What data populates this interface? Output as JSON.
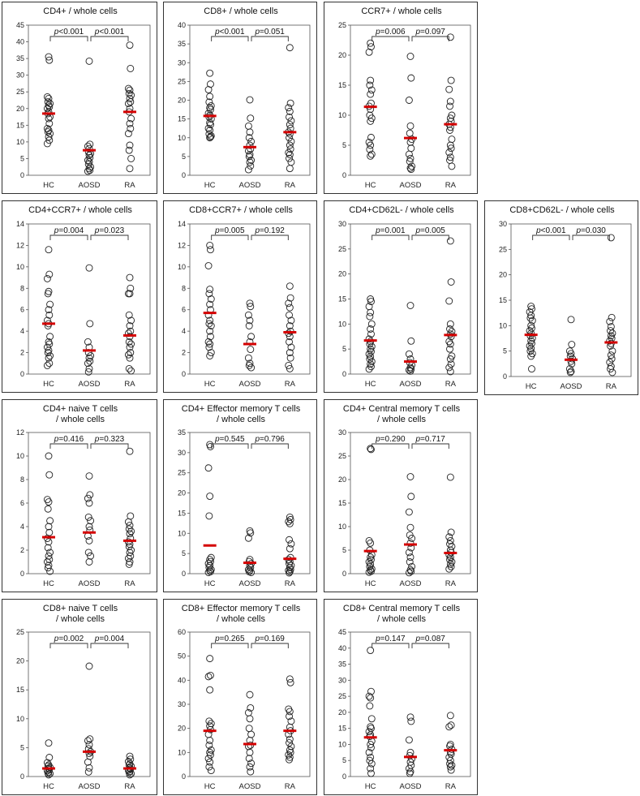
{
  "chart_data": [
    {
      "type": "scatter",
      "title": [
        "CD4+ / whole cells"
      ],
      "categories": [
        "HC",
        "AOSD",
        "RA"
      ],
      "ylim": [
        0,
        45
      ],
      "yticks": [
        0,
        5,
        10,
        15,
        20,
        25,
        30,
        35,
        40,
        45
      ],
      "pvalues": [
        "0.001",
        "0.001"
      ],
      "pvalue_ops": [
        "<",
        "<"
      ],
      "means": [
        18.5,
        7.5,
        19
      ],
      "series": [
        {
          "values": [
            35.5,
            34.5,
            23.5,
            23,
            22,
            21.5,
            21,
            20.5,
            20,
            19,
            18.5,
            17.5,
            17,
            15.5,
            14,
            13.5,
            13,
            12.5,
            11.5,
            10.5,
            9.5
          ]
        },
        {
          "values": [
            34.2,
            9.3,
            8.7,
            8,
            7,
            6.5,
            6,
            5.3,
            4.5,
            4,
            3.3,
            2.5,
            2,
            1.5,
            1.2
          ]
        },
        {
          "values": [
            39,
            32,
            26,
            25.5,
            24.5,
            24,
            23,
            22,
            21.5,
            20,
            19,
            17,
            15.5,
            14,
            12.5,
            9,
            7.5,
            5,
            2
          ]
        }
      ]
    },
    {
      "type": "scatter",
      "title": [
        "CD8+ / whole cells"
      ],
      "categories": [
        "HC",
        "AOSD",
        "RA"
      ],
      "ylim": [
        0,
        40
      ],
      "yticks": [
        0,
        5,
        10,
        15,
        20,
        25,
        30,
        35,
        40
      ],
      "pvalues": [
        "0.001",
        "0.051"
      ],
      "pvalue_ops": [
        "<",
        "="
      ],
      "means": [
        15.8,
        7.5,
        11.5
      ],
      "series": [
        {
          "values": [
            27.2,
            24.3,
            22.8,
            21,
            19.5,
            18.5,
            18,
            17.5,
            16.5,
            16,
            15.5,
            15,
            14,
            13.5,
            12.5,
            12,
            11,
            10.5,
            10,
            10.2
          ]
        },
        {
          "values": [
            20.1,
            15.2,
            13.1,
            11.5,
            10,
            9,
            8,
            7,
            6.5,
            5.5,
            5,
            4,
            3.5,
            2.5,
            1.5
          ]
        },
        {
          "values": [
            34,
            19.2,
            18,
            17,
            15.5,
            14.5,
            13.5,
            12.5,
            11.5,
            11,
            10,
            9,
            8,
            7,
            6,
            5.5,
            4.5,
            3.5,
            1.8
          ]
        }
      ]
    },
    {
      "type": "scatter",
      "title": [
        "CCR7+ / whole cells"
      ],
      "categories": [
        "HC",
        "AOSD",
        "RA"
      ],
      "ylim": [
        0,
        25
      ],
      "yticks": [
        0,
        5,
        10,
        15,
        20,
        25
      ],
      "pvalues": [
        "0.006",
        "0.097"
      ],
      "pvalue_ops": [
        "=",
        "="
      ],
      "means": [
        11.4,
        6.2,
        8.5
      ],
      "series": [
        {
          "values": [
            22,
            21.4,
            20.5,
            15.8,
            15,
            14.2,
            13.5,
            12,
            11.5,
            11,
            10,
            9.5,
            9,
            6.3,
            5.5,
            5,
            4.3,
            3.5,
            3.2
          ]
        },
        {
          "values": [
            19.8,
            16.2,
            12.5,
            8.2,
            7,
            6,
            5.5,
            4.5,
            3.5,
            2.8,
            2.3,
            1.5,
            1.2,
            1
          ]
        },
        {
          "values": [
            23,
            15.8,
            14.3,
            12.3,
            11.5,
            10,
            9.5,
            9,
            8.5,
            8,
            7.5,
            6,
            5,
            4.5,
            3.8,
            3,
            2.5,
            1.5
          ]
        }
      ]
    },
    {
      "type": "scatter",
      "title": [
        "CD4+CCR7+ / whole cells"
      ],
      "categories": [
        "HC",
        "AOSD",
        "RA"
      ],
      "ylim": [
        0,
        14
      ],
      "yticks": [
        0,
        2,
        4,
        6,
        8,
        10,
        12,
        14
      ],
      "pvalues": [
        "0.004",
        "0.023"
      ],
      "pvalue_ops": [
        "=",
        "="
      ],
      "means": [
        4.7,
        2.2,
        3.6
      ],
      "series": [
        {
          "values": [
            11.6,
            9.3,
            8.9,
            7.7,
            7.5,
            6.5,
            6,
            5.5,
            5,
            4.7,
            4.5,
            3.5,
            3,
            2.8,
            2.5,
            2.2,
            2,
            1.7,
            1.5,
            1,
            0.8
          ]
        },
        {
          "values": [
            9.9,
            4.7,
            3,
            2.5,
            2,
            1.7,
            1.5,
            1.2,
            1,
            0.5,
            0.2
          ]
        },
        {
          "values": [
            9,
            8,
            7.5,
            7.5,
            5.5,
            5,
            4.5,
            4,
            3.8,
            3.5,
            3,
            2.8,
            2.5,
            2,
            1.8,
            1.5,
            0.5,
            0.3
          ]
        }
      ]
    },
    {
      "type": "scatter",
      "title": [
        "CD8+CCR7+ / whole cells"
      ],
      "categories": [
        "HC",
        "AOSD",
        "RA"
      ],
      "ylim": [
        0,
        14
      ],
      "yticks": [
        0,
        2,
        4,
        6,
        8,
        10,
        12,
        14
      ],
      "pvalues": [
        "0.005",
        "0.192"
      ],
      "pvalue_ops": [
        "=",
        "="
      ],
      "means": [
        5.7,
        2.8,
        3.9
      ],
      "series": [
        {
          "values": [
            12,
            11.6,
            10.1,
            7.9,
            7.5,
            7,
            6.5,
            6,
            5.5,
            5,
            4.7,
            4.5,
            4,
            3.5,
            3,
            2.8,
            2.5,
            2,
            1.7
          ]
        },
        {
          "values": [
            6.6,
            6.3,
            5.5,
            5,
            4.5,
            3.5,
            3,
            2.3,
            1.5,
            1,
            0.8,
            0.6
          ]
        },
        {
          "values": [
            8.2,
            7.1,
            6.6,
            6.2,
            5.5,
            5,
            4.5,
            4,
            3.8,
            3.5,
            3,
            2.5,
            2,
            1.5,
            0.8,
            0.5
          ]
        }
      ]
    },
    {
      "type": "scatter",
      "title": [
        "CD4+CD62L- / whole cells"
      ],
      "categories": [
        "HC",
        "AOSD",
        "RA"
      ],
      "ylim": [
        0,
        30
      ],
      "yticks": [
        0,
        5,
        10,
        15,
        20,
        25,
        30
      ],
      "pvalues": [
        "0.001",
        "0.005"
      ],
      "pvalue_ops": [
        "=",
        "="
      ],
      "means": [
        6.7,
        2.5,
        7.8
      ],
      "series": [
        {
          "values": [
            15,
            14.5,
            13.5,
            12.3,
            11.5,
            10,
            9,
            8,
            7,
            6.5,
            6,
            5.5,
            5,
            4.5,
            4,
            3.5,
            3,
            2.5,
            2,
            1.5,
            1
          ]
        },
        {
          "values": [
            13.7,
            6.6,
            4,
            3,
            2.3,
            1.8,
            1.3,
            1,
            0.8,
            0.6
          ]
        },
        {
          "values": [
            26.6,
            18.4,
            14.6,
            10,
            9,
            8.5,
            8,
            7.5,
            6.5,
            6,
            5,
            3.6,
            3,
            2,
            1.3,
            0.5
          ]
        }
      ]
    },
    {
      "type": "scatter",
      "title": [
        "CD8+CD62L- / whole cells"
      ],
      "categories": [
        "HC",
        "AOSD",
        "RA"
      ],
      "ylim": [
        0,
        30
      ],
      "yticks": [
        0,
        5,
        10,
        15,
        20,
        25,
        30
      ],
      "pvalues": [
        "0.001",
        "0.030"
      ],
      "pvalue_ops": [
        "<",
        "="
      ],
      "means": [
        8.2,
        3.3,
        6.7
      ],
      "series": [
        {
          "values": [
            13.8,
            13.3,
            12.7,
            12,
            11.5,
            11,
            10,
            9.5,
            9,
            8.5,
            8,
            7.5,
            7,
            6.5,
            6,
            5.5,
            5,
            4.5,
            4,
            1.5
          ]
        },
        {
          "values": [
            11.2,
            6.3,
            5,
            4.5,
            4,
            3.5,
            3,
            2.5,
            1.5,
            1,
            0.8
          ]
        },
        {
          "values": [
            27.3,
            11.6,
            10.8,
            9.8,
            9,
            8.5,
            8,
            7.5,
            7,
            6.5,
            6,
            5,
            4.2,
            3.5,
            2.8,
            2,
            1.5,
            0.8
          ]
        }
      ]
    },
    {
      "type": "scatter",
      "title": [
        "CD4+ naive T cells",
        "/ whole cells"
      ],
      "categories": [
        "HC",
        "AOSD",
        "RA"
      ],
      "ylim": [
        0,
        12
      ],
      "yticks": [
        0,
        2,
        4,
        6,
        8,
        10,
        12
      ],
      "pvalues": [
        "0.416",
        "0.323"
      ],
      "pvalue_ops": [
        "=",
        "="
      ],
      "means": [
        3.1,
        3.5,
        2.8
      ],
      "series": [
        {
          "values": [
            10,
            8.4,
            6.3,
            6.1,
            5.5,
            4.5,
            4,
            3.5,
            3,
            2.7,
            2.2,
            1.8,
            1.5,
            1.2,
            1,
            0.7,
            0.5,
            0.2
          ]
        },
        {
          "values": [
            8.3,
            6.7,
            6.4,
            6,
            4.8,
            4.5,
            4,
            3.7,
            3.2,
            2.8,
            1.8,
            1.5,
            1
          ]
        },
        {
          "values": [
            10.4,
            4.9,
            4.4,
            4.1,
            3.8,
            3.6,
            3.4,
            3,
            2.7,
            2.5,
            2.3,
            2,
            1.8,
            1.5,
            1.3,
            1,
            0.8
          ]
        }
      ]
    },
    {
      "type": "scatter",
      "title": [
        "CD4+ Effector memory T cells",
        "/ whole cells"
      ],
      "categories": [
        "HC",
        "AOSD",
        "RA"
      ],
      "ylim": [
        0,
        35
      ],
      "yticks": [
        0,
        5,
        10,
        15,
        20,
        25,
        30,
        35
      ],
      "pvalues": [
        "0.545",
        "0.796"
      ],
      "pvalue_ops": [
        "=",
        "="
      ],
      "means": [
        7,
        2.7,
        3.7
      ],
      "series": [
        {
          "values": [
            32,
            31.5,
            26.2,
            19.2,
            14.3,
            4,
            3.5,
            3,
            2.5,
            2,
            1.5,
            1,
            0.8,
            0.5,
            0.3
          ]
        },
        {
          "values": [
            10.6,
            10.1,
            8.8,
            3.5,
            3,
            2.5,
            2,
            1.5,
            1,
            0.8,
            0.5,
            0.3
          ]
        },
        {
          "values": [
            14,
            13.4,
            12.9,
            12.4,
            8.4,
            7.4,
            6.2,
            4,
            3.5,
            3,
            2.5,
            2,
            1.5,
            1,
            0.8,
            0.5,
            0.2
          ]
        }
      ]
    },
    {
      "type": "scatter",
      "title": [
        "CD4+ Central memory T cells",
        "/ whole cells"
      ],
      "categories": [
        "HC",
        "AOSD",
        "RA"
      ],
      "ylim": [
        0,
        30
      ],
      "yticks": [
        0,
        5,
        10,
        15,
        20,
        25,
        30
      ],
      "pvalues": [
        "0.290",
        "0.717"
      ],
      "pvalue_ops": [
        "=",
        "="
      ],
      "means": [
        4.8,
        6.2,
        4.4
      ],
      "series": [
        {
          "values": [
            26.6,
            26.4,
            7,
            6.5,
            5,
            4,
            3.5,
            3,
            2.5,
            2,
            1.5,
            1,
            0.8,
            0.5,
            0.3
          ]
        },
        {
          "values": [
            20.6,
            16.4,
            13.1,
            9.8,
            8.2,
            7.5,
            6.5,
            5.5,
            4.5,
            3.5,
            2.5,
            1.5,
            0.8,
            0.5,
            0.2
          ]
        },
        {
          "values": [
            20.5,
            8.8,
            7.8,
            7,
            6.3,
            5.8,
            5,
            4.5,
            4,
            3.5,
            3,
            2.5,
            2,
            1.5,
            1
          ]
        }
      ]
    },
    {
      "type": "scatter",
      "title": [
        "CD8+ naive T cells",
        "/ whole cells"
      ],
      "categories": [
        "HC",
        "AOSD",
        "RA"
      ],
      "ylim": [
        0,
        25
      ],
      "yticks": [
        0,
        5,
        10,
        15,
        20,
        25
      ],
      "pvalues": [
        "0.002",
        "0.004"
      ],
      "pvalue_ops": [
        "=",
        "="
      ],
      "means": [
        1.4,
        4.3,
        1.4
      ],
      "series": [
        {
          "values": [
            5.8,
            3.3,
            2.4,
            2,
            1.8,
            1.6,
            1.4,
            1.2,
            1,
            0.8,
            0.6,
            0.5,
            0.3
          ]
        },
        {
          "values": [
            19.1,
            6.5,
            6.2,
            5.5,
            4.8,
            4.3,
            4,
            3.5,
            2.5,
            1.5,
            0.8
          ]
        },
        {
          "values": [
            3.5,
            3,
            2.6,
            2.2,
            2,
            1.8,
            1.5,
            1.3,
            1.1,
            0.9,
            0.7,
            0.5,
            0.3
          ]
        }
      ]
    },
    {
      "type": "scatter",
      "title": [
        "CD8+ Effector memory T cells",
        "/ whole cells"
      ],
      "categories": [
        "HC",
        "AOSD",
        "RA"
      ],
      "ylim": [
        0,
        60
      ],
      "yticks": [
        0,
        10,
        20,
        30,
        40,
        50,
        60
      ],
      "pvalues": [
        "0.265",
        "0.169"
      ],
      "pvalue_ops": [
        "=",
        "="
      ],
      "means": [
        19,
        13.5,
        19
      ],
      "series": [
        {
          "values": [
            49,
            42,
            41.5,
            36,
            23,
            22,
            21,
            19.5,
            17.5,
            15,
            13,
            11,
            10,
            9,
            7.5,
            6,
            4,
            2.5
          ]
        },
        {
          "values": [
            34,
            28.5,
            26.5,
            24,
            20,
            17.5,
            15,
            13,
            12.5,
            10,
            7.5,
            5.5,
            4,
            2
          ]
        },
        {
          "values": [
            40.5,
            39,
            28,
            27,
            25,
            23,
            20.5,
            19,
            17.5,
            15.5,
            14,
            12.5,
            11,
            10,
            9,
            8,
            7
          ]
        }
      ]
    },
    {
      "type": "scatter",
      "title": [
        "CD8+ Central memory T cells",
        "/ whole cells"
      ],
      "categories": [
        "HC",
        "AOSD",
        "RA"
      ],
      "ylim": [
        0,
        45
      ],
      "yticks": [
        0,
        5,
        10,
        15,
        20,
        25,
        30,
        35,
        40,
        45
      ],
      "pvalues": [
        "0.147",
        "0.087"
      ],
      "pvalue_ops": [
        "=",
        "="
      ],
      "means": [
        12.2,
        6.1,
        8.2
      ],
      "series": [
        {
          "values": [
            39.3,
            26.5,
            25,
            24.5,
            22,
            18,
            15.5,
            15,
            14,
            13,
            12.5,
            11,
            10,
            9,
            7.5,
            6,
            5,
            4,
            2.5,
            1
          ]
        },
        {
          "values": [
            18.5,
            17.2,
            11.4,
            7.5,
            6.5,
            5.5,
            4.5,
            3.5,
            2.5,
            1.5,
            1
          ]
        },
        {
          "values": [
            19,
            16,
            15.5,
            10,
            9.5,
            8.5,
            7.5,
            7,
            6,
            5,
            4,
            3.5,
            3,
            2
          ]
        }
      ]
    }
  ]
}
